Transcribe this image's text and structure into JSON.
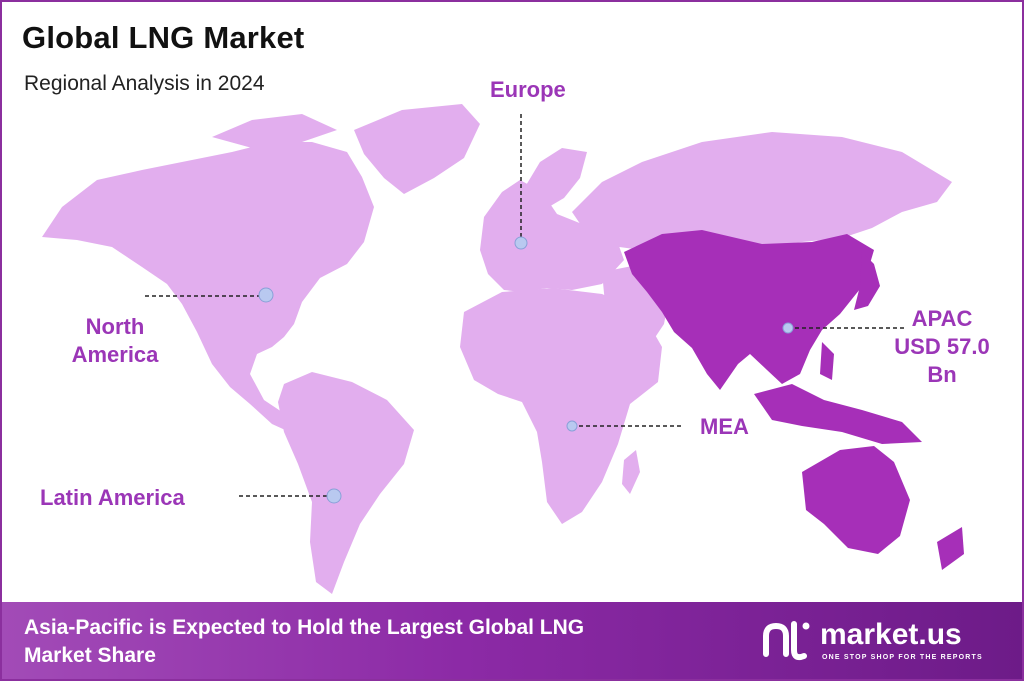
{
  "title": "Global LNG Market",
  "subtitle": "Regional Analysis in 2024",
  "regions": {
    "europe": "Europe",
    "north_america": [
      "North",
      "America"
    ],
    "latin_america": "Latin America",
    "mea": "MEA",
    "apac": [
      "APAC",
      "USD 57.0",
      "Bn"
    ]
  },
  "highlighted_region": "Asia-Pacific",
  "colors": {
    "land": "#e2aeee",
    "highlight": "#a62fb8",
    "label": "#9b36b7",
    "marker": "#b9c9f0",
    "border": "#8b2f9e"
  },
  "footer": {
    "headline_line1": "Asia-Pacific is Expected to Hold the Largest Global LNG",
    "headline_line2": "Market Share"
  },
  "brand": {
    "name": "market.us",
    "tagline": "ONE STOP SHOP FOR THE REPORTS",
    "logo_icon": "market-us-logo"
  }
}
